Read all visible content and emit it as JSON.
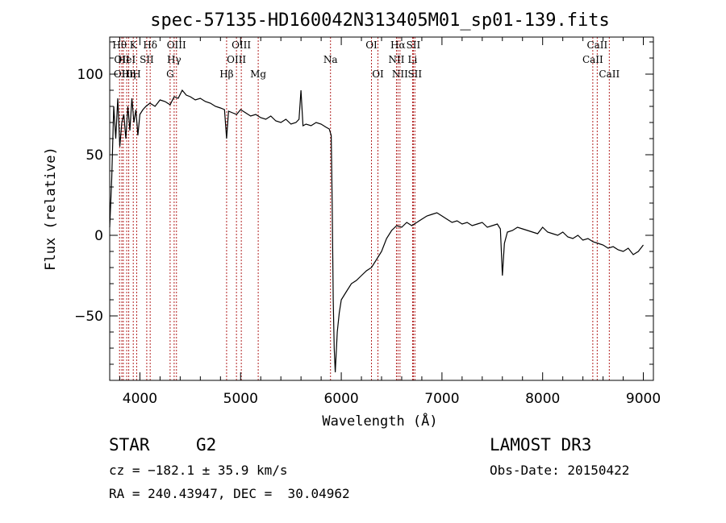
{
  "chart_data": {
    "type": "line",
    "title": "spec-57135-HD160042N313405M01_sp01-139.fits",
    "xlabel": "Wavelength (Å)",
    "ylabel": "Flux (relative)",
    "xlim": [
      3700,
      9100
    ],
    "ylim": [
      -90,
      123
    ],
    "xticks": [
      4000,
      5000,
      6000,
      7000,
      8000,
      9000
    ],
    "yticks": [
      -50,
      0,
      50,
      100
    ],
    "x_minor_step": 200,
    "y_minor_step": 10,
    "grid": false,
    "line_color": "#000000",
    "marker_color": "#b22222",
    "series": [
      {
        "x": [
          3700,
          3720,
          3740,
          3760,
          3780,
          3800,
          3820,
          3840,
          3860,
          3880,
          3900,
          3920,
          3940,
          3960,
          3980,
          4000,
          4030,
          4060,
          4100,
          4150,
          4200,
          4250,
          4300,
          4340,
          4380,
          4420,
          4460,
          4500,
          4550,
          4600,
          4650,
          4700,
          4750,
          4800,
          4840,
          4861,
          4880,
          4920,
          4960,
          5000,
          5050,
          5100,
          5150,
          5200,
          5250,
          5300,
          5350,
          5400,
          5450,
          5500,
          5550,
          5580,
          5600,
          5620,
          5650,
          5700,
          5750,
          5800,
          5850,
          5880,
          5900,
          5910,
          5920,
          5930,
          5940,
          5960,
          5980,
          6000,
          6050,
          6100,
          6150,
          6200,
          6250,
          6300,
          6350,
          6400,
          6450,
          6500,
          6550,
          6600,
          6650,
          6700,
          6750,
          6800,
          6850,
          6900,
          6950,
          7000,
          7050,
          7100,
          7150,
          7200,
          7250,
          7300,
          7350,
          7400,
          7450,
          7500,
          7550,
          7580,
          7600,
          7620,
          7650,
          7700,
          7750,
          7800,
          7850,
          7900,
          7950,
          8000,
          8050,
          8100,
          8150,
          8200,
          8250,
          8300,
          8350,
          8400,
          8450,
          8500,
          8550,
          8600,
          8650,
          8700,
          8750,
          8800,
          8850,
          8900,
          8950,
          9000
        ],
        "y": [
          5,
          35,
          80,
          60,
          85,
          55,
          70,
          75,
          60,
          80,
          65,
          85,
          70,
          78,
          62,
          75,
          78,
          80,
          82,
          80,
          84,
          83,
          81,
          86,
          85,
          90,
          87,
          86,
          84,
          85,
          83,
          82,
          80,
          79,
          78,
          60,
          77,
          76,
          75,
          78,
          76,
          74,
          75,
          73,
          72,
          74,
          71,
          70,
          72,
          69,
          70,
          72,
          90,
          68,
          69,
          68,
          70,
          69,
          67,
          66,
          62,
          20,
          -40,
          -70,
          -85,
          -60,
          -48,
          -40,
          -35,
          -30,
          -28,
          -25,
          -22,
          -20,
          -15,
          -10,
          -2,
          3,
          6,
          5,
          8,
          6,
          8,
          10,
          12,
          13,
          14,
          12,
          10,
          8,
          9,
          7,
          8,
          6,
          7,
          8,
          5,
          6,
          7,
          4,
          -25,
          -5,
          2,
          3,
          5,
          4,
          3,
          2,
          1,
          5,
          2,
          1,
          0,
          2,
          -1,
          -2,
          0,
          -3,
          -2,
          -4,
          -5,
          -6,
          -8,
          -7,
          -9,
          -10,
          -8,
          -12,
          -10,
          -6
        ]
      }
    ],
    "spectral_lines": [
      {
        "wavelength": 3798,
        "label": "Hθ",
        "row": 0
      },
      {
        "wavelength": 3820,
        "label": "OII",
        "row": 1
      },
      {
        "wavelength": 3835,
        "label": "OIII",
        "row": 2
      },
      {
        "wavelength": 3869,
        "label": "HeI",
        "row": 1
      },
      {
        "wavelength": 3889,
        "label": "Hη",
        "row": 2
      },
      {
        "wavelength": 3934,
        "label": "K",
        "row": 0
      },
      {
        "wavelength": 3968,
        "label": "H",
        "row": 2
      },
      {
        "wavelength": 4068,
        "label": "SII",
        "row": 1
      },
      {
        "wavelength": 4102,
        "label": "Hδ",
        "row": 0
      },
      {
        "wavelength": 4300,
        "label": "G",
        "row": 2
      },
      {
        "wavelength": 4340,
        "label": "Hγ",
        "row": 1
      },
      {
        "wavelength": 4363,
        "label": "OIII",
        "row": 0
      },
      {
        "wavelength": 4861,
        "label": "Hβ",
        "row": 2
      },
      {
        "wavelength": 4959,
        "label": "OIII",
        "row": 1
      },
      {
        "wavelength": 5007,
        "label": "OIII",
        "row": 0
      },
      {
        "wavelength": 5175,
        "label": "Mg",
        "row": 2
      },
      {
        "wavelength": 5893,
        "label": "Na",
        "row": 1
      },
      {
        "wavelength": 6300,
        "label": "OI",
        "row": 0
      },
      {
        "wavelength": 6364,
        "label": "OI",
        "row": 2
      },
      {
        "wavelength": 6548,
        "label": "NII",
        "row": 1
      },
      {
        "wavelength": 6563,
        "label": "Hα",
        "row": 0
      },
      {
        "wavelength": 6583,
        "label": "NII",
        "row": 2
      },
      {
        "wavelength": 6708,
        "label": "Li",
        "row": 1
      },
      {
        "wavelength": 6716,
        "label": "SII",
        "row": 0
      },
      {
        "wavelength": 6731,
        "label": "SII",
        "row": 2
      },
      {
        "wavelength": 8498,
        "label": "CaII",
        "row": 1
      },
      {
        "wavelength": 8542,
        "label": "CaII",
        "row": 0
      },
      {
        "wavelength": 8662,
        "label": "CaII",
        "row": 2
      }
    ]
  },
  "info": {
    "class": "STAR",
    "subclass": "G2",
    "survey": "LAMOST DR3",
    "redshift": "cz = −182.1 ± 35.9 km/s",
    "obs_date": "Obs-Date: 20150422",
    "coords": "RA = 240.43947, DEC =  30.04962"
  }
}
